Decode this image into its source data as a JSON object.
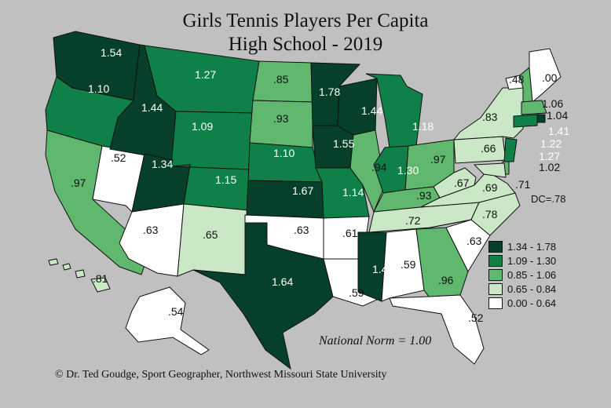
{
  "title_line1": "Girls Tennis Players Per Capita",
  "title_line2": "High School - 2019",
  "national_norm": "National Norm = 1.00",
  "dc_label": "DC=.78",
  "credit": "© Dr. Ted Goudge, Sport Geographer, Northwest Missouri State University",
  "classes": [
    {
      "label": "1.34 - 1.78",
      "color": "#06402a"
    },
    {
      "label": "1.09 - 1.30",
      "color": "#0e8048"
    },
    {
      "label": "0.85 - 1.06",
      "color": "#5fb86e"
    },
    {
      "label": "0.65 - 0.84",
      "color": "#cbe8c6"
    },
    {
      "label": "0.00 - 0.64",
      "color": "#ffffff"
    }
  ],
  "states": [
    {
      "id": "WA",
      "label": "1.54",
      "cls": 0
    },
    {
      "id": "OR",
      "label": "1.10",
      "cls": 1
    },
    {
      "id": "CA",
      "label": ".97",
      "cls": 2
    },
    {
      "id": "NV",
      "label": ".52",
      "cls": 4
    },
    {
      "id": "ID",
      "label": "1.44",
      "cls": 0
    },
    {
      "id": "MT",
      "label": "1.27",
      "cls": 1
    },
    {
      "id": "WY",
      "label": "1.09",
      "cls": 1
    },
    {
      "id": "UT",
      "label": "1.34",
      "cls": 0
    },
    {
      "id": "AZ",
      "label": ".63",
      "cls": 4
    },
    {
      "id": "CO",
      "label": "1.15",
      "cls": 1
    },
    {
      "id": "NM",
      "label": ".65",
      "cls": 3
    },
    {
      "id": "ND",
      "label": ".85",
      "cls": 2
    },
    {
      "id": "SD",
      "label": ".93",
      "cls": 2
    },
    {
      "id": "NE",
      "label": "1.10",
      "cls": 1
    },
    {
      "id": "KS",
      "label": "1.67",
      "cls": 0
    },
    {
      "id": "OK",
      "label": ".63",
      "cls": 4
    },
    {
      "id": "TX",
      "label": "1.64",
      "cls": 0
    },
    {
      "id": "MN",
      "label": "1.78",
      "cls": 0
    },
    {
      "id": "IA",
      "label": "1.55",
      "cls": 0
    },
    {
      "id": "MO",
      "label": "1.14",
      "cls": 1
    },
    {
      "id": "AR",
      "label": ".61",
      "cls": 4
    },
    {
      "id": "LA",
      "label": ".59",
      "cls": 4
    },
    {
      "id": "WI",
      "label": "1.44",
      "cls": 0
    },
    {
      "id": "IL",
      "label": ".94",
      "cls": 2
    },
    {
      "id": "MI",
      "label": "1.18",
      "cls": 1
    },
    {
      "id": "IN",
      "label": "1.30",
      "cls": 1
    },
    {
      "id": "OH",
      "label": ".97",
      "cls": 2
    },
    {
      "id": "KY",
      "label": ".93",
      "cls": 2
    },
    {
      "id": "TN",
      "label": ".72",
      "cls": 3
    },
    {
      "id": "MS",
      "label": "1.43",
      "cls": 0
    },
    {
      "id": "AL",
      "label": ".59",
      "cls": 4
    },
    {
      "id": "GA",
      "label": ".96",
      "cls": 2
    },
    {
      "id": "FL",
      "label": ".52",
      "cls": 4
    },
    {
      "id": "SC",
      "label": ".63",
      "cls": 4
    },
    {
      "id": "NC",
      "label": ".78",
      "cls": 3
    },
    {
      "id": "VA",
      "label": ".69",
      "cls": 3
    },
    {
      "id": "WV",
      "label": ".67",
      "cls": 3
    },
    {
      "id": "PA",
      "label": ".66",
      "cls": 3
    },
    {
      "id": "NY",
      "label": ".83",
      "cls": 3
    },
    {
      "id": "VT",
      "label": ".48",
      "cls": 4
    },
    {
      "id": "NH",
      "label": "1.06",
      "cls": 2
    },
    {
      "id": "ME",
      "label": ".00",
      "cls": 4
    },
    {
      "id": "MA",
      "label": "1.04",
      "cls": 2
    },
    {
      "id": "RI",
      "label": "1.41",
      "cls": 0
    },
    {
      "id": "CT",
      "label": "1.22",
      "cls": 1
    },
    {
      "id": "NJ",
      "label": "1.27",
      "cls": 1
    },
    {
      "id": "DE",
      "label": "1.02",
      "cls": 2
    },
    {
      "id": "MD",
      "label": ".71",
      "cls": 3
    },
    {
      "id": "AK",
      "label": ".54",
      "cls": 4
    },
    {
      "id": "HI",
      "label": ".81",
      "cls": 3
    }
  ]
}
